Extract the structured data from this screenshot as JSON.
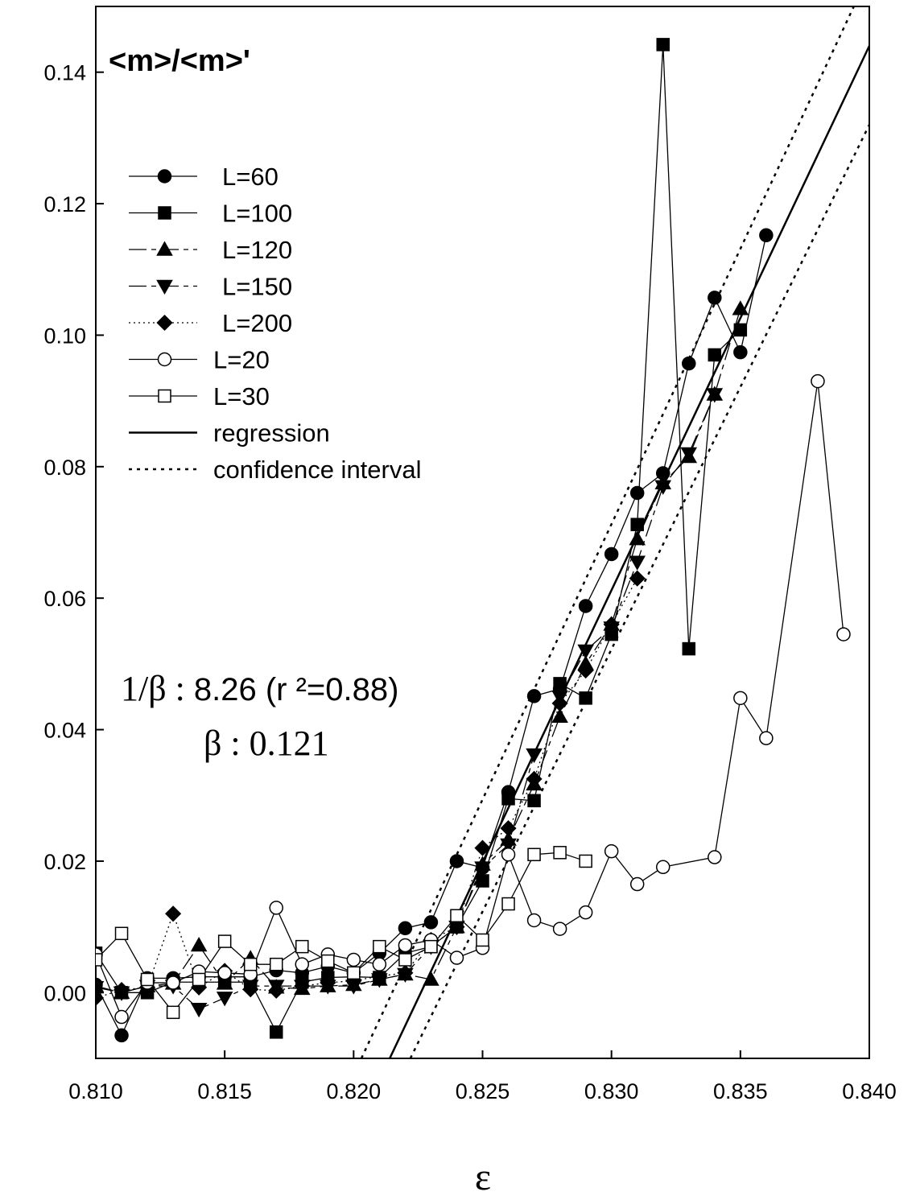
{
  "chart_data": {
    "type": "line",
    "title": "<m>/<m>'",
    "xlabel": "ε",
    "ylabel": "",
    "xlim": [
      0.81,
      0.84
    ],
    "ylim": [
      -0.01,
      0.15
    ],
    "x_ticks": [
      "0.810",
      "0.815",
      "0.820",
      "0.825",
      "0.830",
      "0.835",
      "0.840"
    ],
    "y_ticks": [
      "0.00",
      "0.02",
      "0.04",
      "0.06",
      "0.08",
      "0.10",
      "0.12",
      "0.14"
    ],
    "legend_position": "upper-left",
    "annotations": {
      "line1_prefix": "1/",
      "line1_symbol": "β",
      "line1_sep": " : ",
      "line1_value": "8.26 (r ²=0.88)",
      "line2_symbol": "β",
      "line2_value": " : 0.121"
    },
    "series": [
      {
        "name": "L=60",
        "marker": "circle-filled",
        "dash": "solid",
        "x": [
          0.81,
          0.811,
          0.812,
          0.813,
          0.814,
          0.815,
          0.816,
          0.817,
          0.818,
          0.819,
          0.82,
          0.821,
          0.822,
          0.823,
          0.824,
          0.825,
          0.826,
          0.827,
          0.828,
          0.829,
          0.83,
          0.831,
          0.832,
          0.833,
          0.834,
          0.835,
          0.836
        ],
        "y": [
          0.0012,
          -0.0065,
          0.0022,
          0.0022,
          0.0024,
          0.0024,
          0.0024,
          0.0034,
          0.003,
          0.004,
          0.003,
          0.006,
          0.0098,
          0.0107,
          0.02,
          0.019,
          0.0305,
          0.0451,
          0.0462,
          0.0588,
          0.0667,
          0.076,
          0.079,
          0.0957,
          0.1057,
          0.0974,
          0.1152
        ]
      },
      {
        "name": "L=100",
        "marker": "square-filled",
        "dash": "solid",
        "x": [
          0.81,
          0.811,
          0.812,
          0.813,
          0.814,
          0.815,
          0.816,
          0.817,
          0.818,
          0.819,
          0.82,
          0.821,
          0.822,
          0.823,
          0.824,
          0.825,
          0.826,
          0.827,
          0.828,
          0.829,
          0.83,
          0.831,
          0.832,
          0.833,
          0.834,
          0.835
        ],
        "y": [
          0.006,
          0.0,
          0.0,
          0.0016,
          0.0016,
          0.0016,
          0.0016,
          -0.006,
          0.0016,
          0.0023,
          0.0024,
          0.0023,
          0.006,
          0.007,
          0.01,
          0.017,
          0.0295,
          0.0292,
          0.047,
          0.0448,
          0.0545,
          0.0712,
          0.1442,
          0.0523,
          0.097,
          0.1008
        ]
      },
      {
        "name": "L=120",
        "marker": "triangle-up-filled",
        "dash": "long-short",
        "x": [
          0.81,
          0.811,
          0.812,
          0.813,
          0.814,
          0.815,
          0.816,
          0.817,
          0.818,
          0.819,
          0.82,
          0.821,
          0.822,
          0.823,
          0.824,
          0.825,
          0.826,
          0.827,
          0.828,
          0.829,
          0.83,
          0.831,
          0.832,
          0.833,
          0.834,
          0.835
        ],
        "y": [
          0.001,
          0.0,
          0.001,
          0.0014,
          0.0072,
          0.0014,
          0.0052,
          0.0008,
          0.0006,
          0.001,
          0.0012,
          0.002,
          0.0028,
          0.002,
          0.01,
          0.0195,
          0.0233,
          0.0317,
          0.042,
          0.05,
          0.056,
          0.069,
          0.0775,
          0.0815,
          0.091,
          0.104
        ]
      },
      {
        "name": "L=150",
        "marker": "triangle-down-filled",
        "dash": "long-short",
        "x": [
          0.81,
          0.811,
          0.812,
          0.813,
          0.814,
          0.815,
          0.816,
          0.817,
          0.818,
          0.819,
          0.82,
          0.821,
          0.822,
          0.823,
          0.824,
          0.825,
          0.826,
          0.827,
          0.828,
          0.829,
          0.83,
          0.831,
          0.832,
          0.833,
          0.834
        ],
        "y": [
          0.0008,
          0.0,
          0.001,
          0.001,
          -0.0025,
          -0.0008,
          0.001,
          0.001,
          0.001,
          0.001,
          0.001,
          0.002,
          0.0028,
          0.007,
          0.01,
          0.019,
          0.0225,
          0.0362,
          0.045,
          0.052,
          0.0555,
          0.0655,
          0.077,
          0.082,
          0.091
        ]
      },
      {
        "name": "L=200",
        "marker": "diamond-filled",
        "dash": "dotted",
        "x": [
          0.81,
          0.811,
          0.812,
          0.813,
          0.814,
          0.815,
          0.816,
          0.817,
          0.818,
          0.819,
          0.82,
          0.821,
          0.822,
          0.823,
          0.824,
          0.825,
          0.826,
          0.827,
          0.828,
          0.829,
          0.83,
          0.831
        ],
        "y": [
          -0.0008,
          0.0004,
          0.0008,
          0.012,
          0.0008,
          0.0033,
          0.0005,
          0.0003,
          0.001,
          0.0015,
          0.0018,
          0.0025,
          0.003,
          0.008,
          0.01,
          0.022,
          0.025,
          0.0325,
          0.044,
          0.049,
          0.056,
          0.063
        ]
      },
      {
        "name": "L=20",
        "marker": "circle-open",
        "dash": "solid",
        "x": [
          0.81,
          0.811,
          0.812,
          0.813,
          0.814,
          0.815,
          0.816,
          0.817,
          0.818,
          0.819,
          0.82,
          0.821,
          0.822,
          0.823,
          0.824,
          0.825,
          0.826,
          0.827,
          0.828,
          0.829,
          0.83,
          0.831,
          0.832,
          0.834,
          0.835,
          0.836,
          0.838,
          0.839
        ],
        "y": [
          0.0058,
          -0.0037,
          0.0015,
          0.0015,
          0.0032,
          0.003,
          0.0028,
          0.0129,
          0.0043,
          0.0058,
          0.005,
          0.0043,
          0.0072,
          0.008,
          0.0053,
          0.0068,
          0.021,
          0.011,
          0.0097,
          0.0122,
          0.0215,
          0.0165,
          0.0191,
          0.0206,
          0.0448,
          0.0387,
          0.093,
          0.0545
        ]
      },
      {
        "name": "L=30",
        "marker": "square-open",
        "dash": "solid",
        "x": [
          0.81,
          0.811,
          0.812,
          0.813,
          0.814,
          0.815,
          0.816,
          0.817,
          0.818,
          0.819,
          0.82,
          0.821,
          0.822,
          0.823,
          0.824,
          0.825,
          0.826,
          0.827,
          0.828,
          0.829
        ],
        "y": [
          0.005,
          0.009,
          0.002,
          -0.003,
          0.002,
          0.0078,
          0.0043,
          0.0043,
          0.007,
          0.0048,
          0.003,
          0.007,
          0.005,
          0.007,
          0.0117,
          0.008,
          0.0135,
          0.021,
          0.0213,
          0.02
        ]
      }
    ],
    "regression": {
      "name": "regression",
      "x": [
        0.8214,
        0.84
      ],
      "y": [
        -0.01,
        0.144
      ]
    },
    "confidence_interval": {
      "name": "confidence interval",
      "upper": {
        "x": [
          0.8203,
          0.8394
        ],
        "y": [
          -0.01,
          0.15
        ]
      },
      "lower": {
        "x": [
          0.8222,
          0.84
        ],
        "y": [
          -0.01,
          0.132
        ]
      }
    }
  }
}
